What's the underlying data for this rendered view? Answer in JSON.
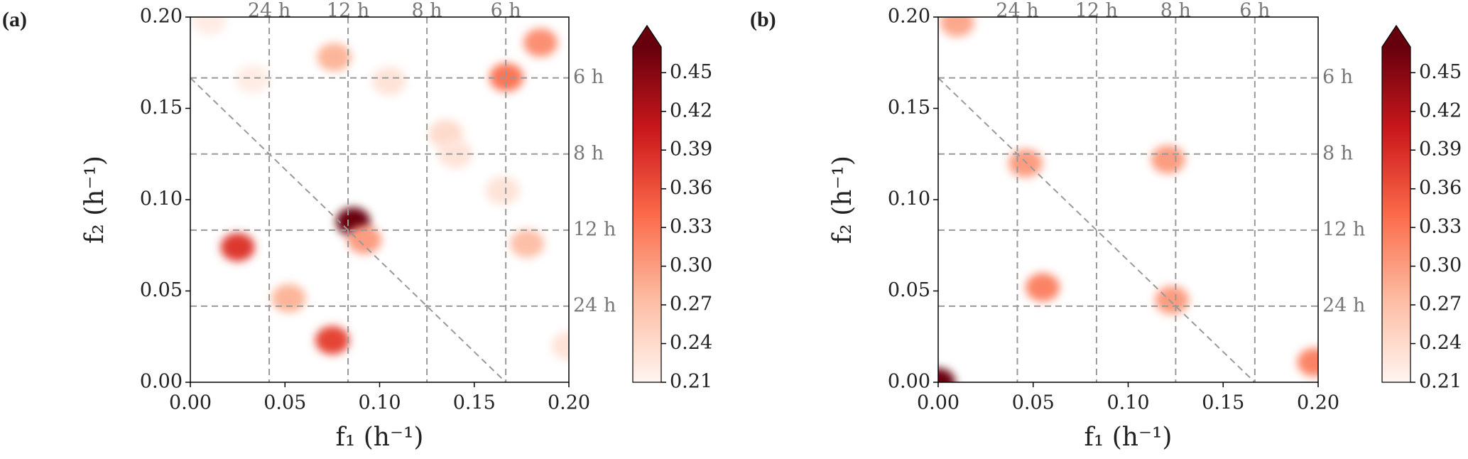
{
  "chart_data": [
    {
      "type": "scatter",
      "panel_label": "(a)",
      "x_label": "f₁ (h⁻¹)",
      "y_label": "f₂ (h⁻¹)",
      "xlim": [
        0,
        0.2
      ],
      "ylim": [
        0,
        0.2
      ],
      "xticks": [
        {
          "value": 0,
          "label": "0.00"
        },
        0.05,
        {
          "value": 0.1,
          "label": "0.10"
        },
        0.15,
        {
          "value": 0.2,
          "label": "0.20"
        }
      ],
      "yticks": [
        {
          "value": 0,
          "label": "0.00"
        },
        0.05,
        {
          "value": 0.1,
          "label": "0.10"
        },
        0.15,
        {
          "value": 0.2,
          "label": "0.20"
        }
      ],
      "period_lines": [
        {
          "value": 0.04167,
          "label": "24 h"
        },
        {
          "value": 0.08333,
          "label": "12 h"
        },
        {
          "value": 0.125,
          "label": "8 h"
        },
        {
          "value": 0.16667,
          "label": "6 h"
        }
      ],
      "series": [
        {
          "x": [
            0.025,
            0.086,
            0.092,
            0.075,
            0.052,
            0.076,
            0.167,
            0.185,
            0.178,
            0.105,
            0.135,
            0.165,
            0.01,
            0.14,
            0.2,
            0.033
          ],
          "y": [
            0.074,
            0.088,
            0.078,
            0.023,
            0.046,
            0.178,
            0.167,
            0.186,
            0.076,
            0.165,
            0.136,
            0.105,
            0.198,
            0.125,
            0.02,
            0.166
          ],
          "values": [
            0.38,
            0.47,
            0.3,
            0.37,
            0.28,
            0.28,
            0.33,
            0.31,
            0.27,
            0.23,
            0.24,
            0.23,
            0.22,
            0.23,
            0.23,
            0.22
          ]
        }
      ],
      "colormap": "Reds",
      "clim": [
        0.21,
        0.47
      ],
      "extend": "max",
      "cticks": [
        0.21,
        0.24,
        0.27,
        {
          "value": 0.3,
          "label": "0.30"
        },
        0.33,
        0.36,
        0.39,
        0.42,
        0.45
      ]
    },
    {
      "type": "scatter",
      "panel_label": "(b)",
      "x_label": "f₁ (h⁻¹)",
      "y_label": "f₂ (h⁻¹)",
      "xlim": [
        0,
        0.2
      ],
      "ylim": [
        0,
        0.2
      ],
      "xticks": [
        {
          "value": 0,
          "label": "0.00"
        },
        0.05,
        {
          "value": 0.1,
          "label": "0.10"
        },
        0.15,
        {
          "value": 0.2,
          "label": "0.20"
        }
      ],
      "yticks": [
        {
          "value": 0,
          "label": "0.00"
        },
        0.05,
        {
          "value": 0.1,
          "label": "0.10"
        },
        0.15,
        {
          "value": 0.2,
          "label": "0.20"
        }
      ],
      "period_lines": [
        {
          "value": 0.04167,
          "label": "24 h"
        },
        {
          "value": 0.08333,
          "label": "12 h"
        },
        {
          "value": 0.125,
          "label": "8 h"
        },
        {
          "value": 0.16667,
          "label": "6 h"
        }
      ],
      "series": [
        {
          "x": [
            0.01,
            0.046,
            0.121,
            0.055,
            0.123,
            0.198,
            0.0
          ],
          "y": [
            0.197,
            0.12,
            0.122,
            0.052,
            0.045,
            0.011,
            0.0
          ],
          "values": [
            0.29,
            0.3,
            0.3,
            0.32,
            0.3,
            0.32,
            0.5
          ]
        }
      ],
      "colormap": "Reds",
      "clim": [
        0.21,
        0.47
      ],
      "extend": "max",
      "cticks": [
        0.21,
        0.24,
        0.27,
        {
          "value": 0.3,
          "label": "0.30"
        },
        0.33,
        0.36,
        0.39,
        0.42,
        0.45
      ]
    }
  ]
}
